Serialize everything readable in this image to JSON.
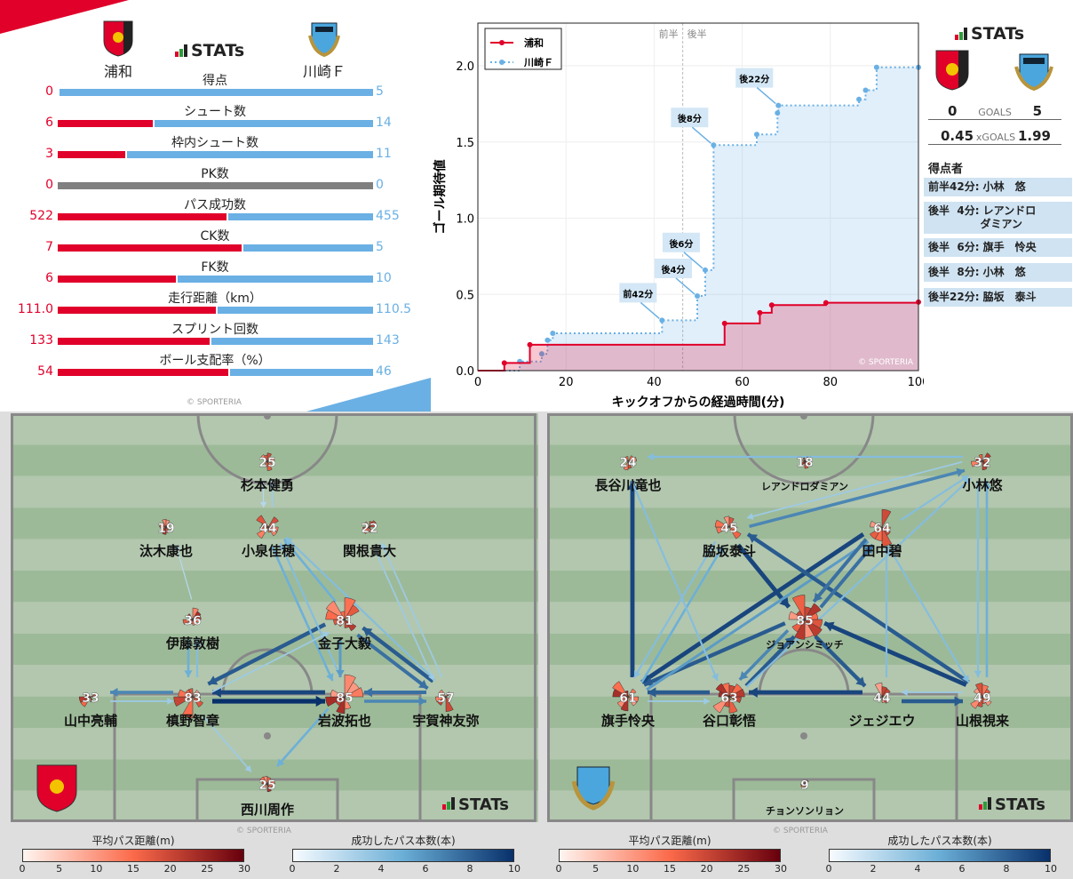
{
  "colors": {
    "home": "#e0002a",
    "away": "#6ab0e4",
    "neutral": "#808080",
    "pitch_light": "#b2c7ae",
    "pitch_dark": "#9dba98"
  },
  "stats_panel": {
    "logo": "STATs",
    "home_team": "浦和",
    "away_team": "川崎Ｆ",
    "copyright": "© SPORTERIA",
    "rows": [
      {
        "label": "得点",
        "home": "0",
        "away": "5"
      },
      {
        "label": "シュート数",
        "home": "6",
        "away": "14"
      },
      {
        "label": "枠内シュート数",
        "home": "3",
        "away": "11"
      },
      {
        "label": "PK数",
        "home": "0",
        "away": "0"
      },
      {
        "label": "パス成功数",
        "home": "522",
        "away": "455"
      },
      {
        "label": "CK数",
        "home": "7",
        "away": "5"
      },
      {
        "label": "FK数",
        "home": "6",
        "away": "10"
      },
      {
        "label": "走行距離（km）",
        "home": "111.0",
        "away": "110.5"
      },
      {
        "label": "スプリント回数",
        "home": "133",
        "away": "143"
      },
      {
        "label": "ボール支配率（%）",
        "home": "54",
        "away": "46"
      }
    ]
  },
  "chart_data": {
    "type": "line",
    "step": true,
    "xlabel": "キックオフからの経過時間(分)",
    "ylabel": "ゴール期待値",
    "xlim": [
      0,
      100
    ],
    "ylim": [
      0,
      2.28
    ],
    "xticks": [
      "0",
      "20",
      "40",
      "60",
      "80",
      "100"
    ],
    "yticks": [
      "0.0",
      "0.5",
      "1.0",
      "1.5",
      "2.0"
    ],
    "grid": true,
    "legend": "top-left",
    "half_marker": {
      "x": 46.5,
      "before": "前半",
      "after": "後半"
    },
    "copyright": "© SPORTERIA",
    "series": [
      {
        "name": "浦和",
        "color": "#e0002a",
        "style": "solid",
        "x": [
          0,
          6,
          11.8,
          56,
          64,
          66.7,
          79,
          100
        ],
        "y": [
          0,
          0.05,
          0.17,
          0.31,
          0.38,
          0.43,
          0.445,
          0.45
        ]
      },
      {
        "name": "川崎Ｆ",
        "color": "#6ab0e4",
        "style": "dotted",
        "x": [
          0,
          9.5,
          14.5,
          15.8,
          17,
          41.8,
          49.8,
          51.6,
          53.5,
          63.3,
          68,
          68.2,
          86.5,
          88,
          90.5,
          100
        ],
        "y": [
          0,
          0.06,
          0.11,
          0.2,
          0.245,
          0.33,
          0.49,
          0.66,
          1.48,
          1.55,
          1.69,
          1.74,
          1.78,
          1.84,
          1.99,
          1.99
        ]
      }
    ],
    "annotations": [
      {
        "label": "前42分",
        "x": 41.8,
        "y": 0.33
      },
      {
        "label": "後4分",
        "x": 49.8,
        "y": 0.49
      },
      {
        "label": "後6分",
        "x": 51.6,
        "y": 0.66
      },
      {
        "label": "後8分",
        "x": 53.5,
        "y": 1.48
      },
      {
        "label": "後22分",
        "x": 68.2,
        "y": 1.74
      }
    ]
  },
  "summary": {
    "logo": "STATs",
    "goals": {
      "label": "GOALS",
      "home": "0",
      "away": "5"
    },
    "xgoals": {
      "label": "xGOALS",
      "home": "0.45",
      "away": "1.99"
    },
    "scorers_title": "得点者",
    "scorers": [
      "前半42分: 小林　悠",
      "後半  4分: レアンドロ\n              ダミアン",
      "後半  6分: 旗手　怜央",
      "後半  8分: 小林　悠",
      "後半22分: 脇坂　泰斗"
    ]
  },
  "pass_maps": [
    {
      "team": "浦和",
      "logo": "STATs",
      "copyright": "© SPORTERIA",
      "players": [
        {
          "number": "25",
          "name": "杉本健勇"
        },
        {
          "number": "19",
          "name": "汰木康也"
        },
        {
          "number": "44",
          "name": "小泉佳穂"
        },
        {
          "number": "22",
          "name": "関根貴大"
        },
        {
          "number": "36",
          "name": "伊藤敦樹"
        },
        {
          "number": "81",
          "name": "金子大毅"
        },
        {
          "number": "33",
          "name": "山中亮輔"
        },
        {
          "number": "83",
          "name": "槙野智章"
        },
        {
          "number": "85",
          "name": "岩波拓也"
        },
        {
          "number": "57",
          "name": "宇賀神友弥"
        },
        {
          "number": "25",
          "name": "西川周作"
        }
      ],
      "passes": [
        [
          7,
          8,
          10
        ],
        [
          8,
          7,
          9
        ],
        [
          5,
          7,
          8
        ],
        [
          9,
          5,
          8
        ],
        [
          5,
          9,
          7
        ],
        [
          9,
          8,
          7
        ],
        [
          8,
          9,
          6
        ],
        [
          7,
          6,
          6
        ],
        [
          6,
          7,
          2
        ],
        [
          4,
          7,
          4
        ],
        [
          7,
          4,
          3
        ],
        [
          2,
          8,
          4
        ],
        [
          8,
          2,
          3
        ],
        [
          5,
          2,
          4
        ],
        [
          9,
          2,
          3
        ],
        [
          9,
          3,
          2
        ],
        [
          3,
          9,
          2
        ],
        [
          4,
          1,
          1
        ],
        [
          0,
          2,
          1
        ],
        [
          2,
          0,
          2
        ],
        [
          7,
          10,
          2
        ],
        [
          8,
          10,
          4
        ],
        [
          7,
          5,
          2
        ],
        [
          5,
          8,
          5
        ]
      ]
    },
    {
      "team": "川崎Ｆ",
      "logo": "STATs",
      "copyright": "© SPORTERIA",
      "players": [
        {
          "number": "24",
          "name": "長谷川竜也"
        },
        {
          "number": "18",
          "name": "レアンドロダミアン"
        },
        {
          "number": "32",
          "name": "小林悠"
        },
        {
          "number": "45",
          "name": "脇坂泰斗"
        },
        {
          "number": "64",
          "name": "田中碧"
        },
        {
          "number": "85",
          "name": "ジョアンシミッチ"
        },
        {
          "number": "61",
          "name": "旗手怜央"
        },
        {
          "number": "63",
          "name": "谷口彰悟"
        },
        {
          "number": "44",
          "name": "ジェジエウ"
        },
        {
          "number": "49",
          "name": "山根視来"
        },
        {
          "number": "9",
          "name": "チョンソンリョン"
        }
      ],
      "passes": [
        [
          6,
          0,
          9
        ],
        [
          3,
          5,
          9
        ],
        [
          4,
          6,
          9
        ],
        [
          5,
          6,
          8
        ],
        [
          6,
          4,
          5
        ],
        [
          7,
          5,
          8
        ],
        [
          5,
          7,
          6
        ],
        [
          8,
          7,
          9
        ],
        [
          7,
          6,
          8
        ],
        [
          5,
          8,
          8
        ],
        [
          9,
          5,
          9
        ],
        [
          8,
          9,
          8
        ],
        [
          9,
          3,
          8
        ],
        [
          4,
          5,
          7
        ],
        [
          5,
          4,
          7
        ],
        [
          3,
          2,
          6
        ],
        [
          9,
          2,
          4
        ],
        [
          2,
          9,
          3
        ],
        [
          2,
          0,
          3
        ],
        [
          6,
          3,
          4
        ],
        [
          3,
          6,
          3
        ],
        [
          7,
          2,
          3
        ],
        [
          8,
          4,
          3
        ],
        [
          4,
          9,
          3
        ],
        [
          0,
          7,
          3
        ],
        [
          2,
          3,
          2
        ],
        [
          6,
          7,
          2
        ],
        [
          9,
          8,
          2
        ],
        [
          4,
          2,
          3
        ]
      ]
    }
  ],
  "colorbars": [
    {
      "title": "平均パス距離(m)",
      "ticks": [
        "0",
        "5",
        "10",
        "15",
        "20",
        "25",
        "30"
      ],
      "colors": [
        "#fff5f0",
        "#fb6a4a",
        "#67000d"
      ]
    },
    {
      "title": "成功したパス本数(本)",
      "ticks": [
        "0",
        "2",
        "4",
        "6",
        "8",
        "10"
      ],
      "colors": [
        "#f7fbff",
        "#6aaed6",
        "#08306b"
      ]
    }
  ]
}
